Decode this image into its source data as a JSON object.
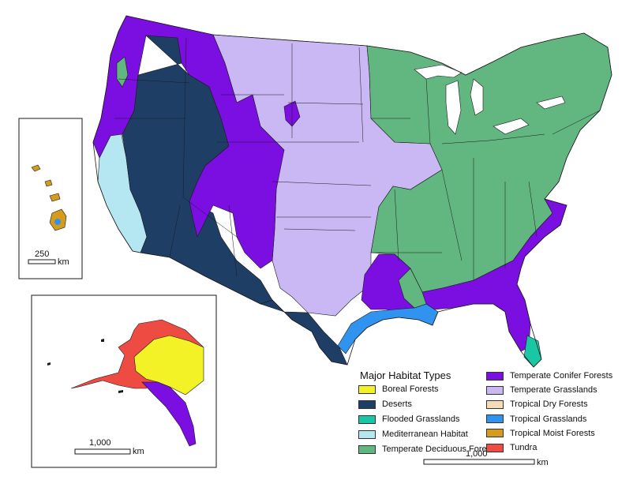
{
  "map": {
    "colors": {
      "boreal": "#f2f226",
      "deserts": "#1f3e66",
      "flooded": "#19c7a5",
      "mediterranean": "#b4e7f2",
      "deciduous": "#61b77f",
      "conifer": "#7b0ee1",
      "grasslands": "#c9b8f3",
      "tropical_dry": "#f4dcb9",
      "tropical_grass": "#2f93ef",
      "tropical_moist": "#d69b1d",
      "tundra": "#ee4b43",
      "border": "#1a1a1a"
    }
  },
  "legend": {
    "title": "Major Habitat Types",
    "items": [
      {
        "label": "Boreal Forests",
        "color": "#f2f226"
      },
      {
        "label": "Deserts",
        "color": "#1f3e66"
      },
      {
        "label": "Flooded Grasslands",
        "color": "#19c7a5"
      },
      {
        "label": "Mediterranean Habitat",
        "color": "#b4e7f2"
      },
      {
        "label": "Temperate Deciduous Forests",
        "color": "#61b77f"
      },
      {
        "label": "Temperate Conifer Forests",
        "color": "#7b0ee1"
      },
      {
        "label": "Temperate Grasslands",
        "color": "#c9b8f3"
      },
      {
        "label": "Tropical Dry Forests",
        "color": "#f4dcb9"
      },
      {
        "label": "Tropical Grasslands",
        "color": "#2f93ef"
      },
      {
        "label": "Tropical Moist Forests",
        "color": "#d69b1d"
      },
      {
        "label": "Tundra",
        "color": "#ee4b43"
      }
    ]
  },
  "scales": {
    "hawaii": {
      "value": "250",
      "unit": "km"
    },
    "alaska": {
      "value": "1,000",
      "unit": "km"
    },
    "conus": {
      "value": "1,000",
      "unit": "km"
    }
  }
}
